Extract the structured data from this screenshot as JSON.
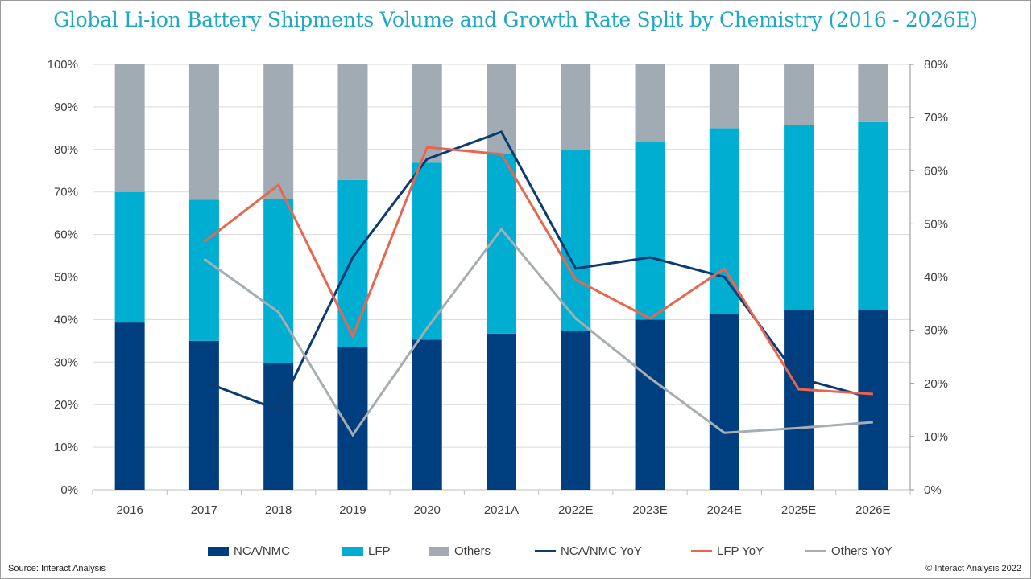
{
  "chart_data": {
    "type": "bar",
    "title": "Global Li-ion Battery Shipments Volume and Growth Rate Split by Chemistry (2016 - 2026E)",
    "categories": [
      "2016",
      "2017",
      "2018",
      "2019",
      "2020",
      "2021A",
      "2022E",
      "2023E",
      "2024E",
      "2025E",
      "2026E"
    ],
    "stacked": true,
    "left_axis": {
      "ticks": [
        "0%",
        "10%",
        "20%",
        "30%",
        "40%",
        "50%",
        "60%",
        "70%",
        "80%",
        "90%",
        "100%"
      ],
      "range": [
        0,
        100
      ]
    },
    "right_axis": {
      "ticks": [
        "0%",
        "10%",
        "20%",
        "30%",
        "40%",
        "50%",
        "60%",
        "70%",
        "80%"
      ],
      "range": [
        0,
        80
      ]
    },
    "series": [
      {
        "name": "NCA/NMC",
        "type": "bar",
        "axis": "left",
        "color": "#003f7f",
        "values": [
          39.3,
          35.0,
          29.7,
          33.6,
          35.3,
          36.7,
          37.4,
          40.0,
          41.4,
          42.2,
          42.2
        ]
      },
      {
        "name": "LFP",
        "type": "bar",
        "axis": "left",
        "color": "#00aed1",
        "values": [
          30.7,
          33.2,
          38.7,
          39.2,
          41.6,
          42.3,
          42.4,
          41.7,
          43.6,
          43.6,
          44.2
        ]
      },
      {
        "name": "Others",
        "type": "bar",
        "axis": "left",
        "color": "#a1abb3",
        "values": [
          30.0,
          31.8,
          31.6,
          27.2,
          23.1,
          21.0,
          20.2,
          18.3,
          15.0,
          14.2,
          13.6
        ]
      },
      {
        "name": "NCA/NMC YoY",
        "type": "line",
        "axis": "right",
        "color": "#0b3b73",
        "values": [
          null,
          20.3,
          15.0,
          43.7,
          62.2,
          67.3,
          41.6,
          43.7,
          40.0,
          21.0,
          17.2
        ]
      },
      {
        "name": "LFP YoY",
        "type": "line",
        "axis": "right",
        "color": "#e8664f",
        "values": [
          null,
          46.6,
          57.3,
          28.9,
          64.4,
          63.1,
          39.5,
          32.2,
          41.6,
          18.9,
          18.0
        ]
      },
      {
        "name": "Others YoY",
        "type": "line",
        "axis": "right",
        "color": "#a6adb3",
        "values": [
          null,
          43.4,
          33.4,
          10.3,
          30.4,
          49.0,
          32.2,
          21.0,
          10.7,
          11.6,
          12.7
        ]
      }
    ],
    "grid": true,
    "legend_position": "bottom"
  },
  "footer": {
    "source": "Source: Interact Analysis",
    "copyright": "© Interact Analysis 2022"
  }
}
